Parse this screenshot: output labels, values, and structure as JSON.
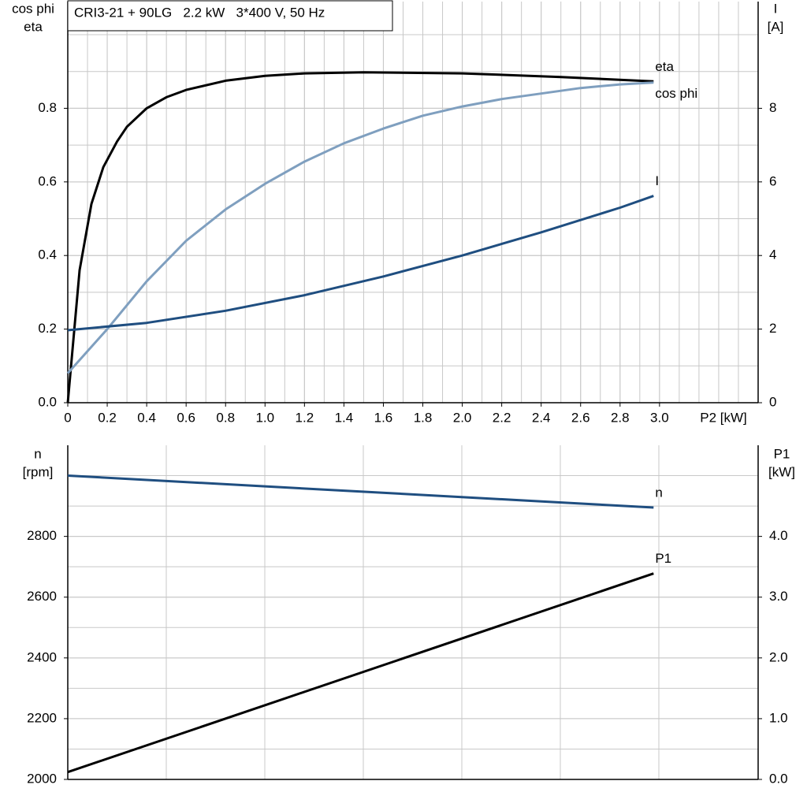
{
  "chart_data": [
    {
      "type": "line",
      "title": "CRI3-21 + 90LG   2.2 kW   3*400 V, 50 Hz",
      "ylabel": [
        "cos phi",
        "eta"
      ],
      "y2label": [
        "I",
        "[A]"
      ],
      "xlabel": "P2 [kW]",
      "xlim": [
        0,
        3.5
      ],
      "xticks": [
        0,
        0.2,
        0.4,
        0.6,
        0.8,
        {
          "value": 1.0,
          "label": "1.0"
        },
        1.2,
        1.4,
        1.6,
        1.8,
        {
          "value": 2.0,
          "label": "2.0"
        },
        2.2,
        2.4,
        2.6,
        2.8,
        {
          "value": 3.0,
          "label": "3.0"
        }
      ],
      "ylim": [
        0,
        1.09
      ],
      "yticks": [
        {
          "value": 0,
          "label": "0.0"
        },
        0.2,
        0.4,
        0.6,
        0.8
      ],
      "y2lim": [
        0,
        10.9
      ],
      "y2ticks": [
        0,
        2,
        4,
        6,
        8
      ],
      "grid": true,
      "series": [
        {
          "name": "eta",
          "color": "#000000",
          "x": [
            0,
            0.06,
            0.12,
            0.18,
            0.25,
            0.3,
            0.4,
            0.5,
            0.6,
            0.8,
            1.0,
            1.2,
            1.5,
            2.0,
            2.5,
            2.97
          ],
          "values": [
            0,
            0.36,
            0.54,
            0.64,
            0.71,
            0.75,
            0.8,
            0.83,
            0.85,
            0.875,
            0.888,
            0.895,
            0.898,
            0.895,
            0.885,
            0.873
          ]
        },
        {
          "name": "cos phi",
          "color": "#7f9fbf",
          "x": [
            0,
            0.2,
            0.4,
            0.6,
            0.8,
            1.0,
            1.2,
            1.4,
            1.6,
            1.8,
            2.0,
            2.2,
            2.4,
            2.6,
            2.8,
            2.97
          ],
          "values": [
            0.08,
            0.2,
            0.33,
            0.44,
            0.525,
            0.595,
            0.655,
            0.705,
            0.745,
            0.78,
            0.805,
            0.825,
            0.84,
            0.855,
            0.865,
            0.87
          ]
        },
        {
          "name": "I",
          "color": "#1f4e80",
          "axis": "y2",
          "x": [
            0,
            0.4,
            0.8,
            1.2,
            1.6,
            2.0,
            2.4,
            2.8,
            2.97
          ],
          "values": [
            1.97,
            2.17,
            2.5,
            2.92,
            3.43,
            4.0,
            4.63,
            5.3,
            5.62
          ]
        }
      ]
    },
    {
      "type": "line",
      "ylabel": [
        "n",
        "[rpm]"
      ],
      "y2label": [
        "P1",
        "[kW]"
      ],
      "xlim": [
        0,
        3.5
      ],
      "ylim": [
        2000,
        3100
      ],
      "yticks": [
        2000,
        2200,
        2400,
        2600,
        2800
      ],
      "y2lim": [
        0,
        5.5
      ],
      "y2ticks": [
        {
          "value": 0,
          "label": "0.0"
        },
        {
          "value": 1.0,
          "label": "1.0"
        },
        {
          "value": 2.0,
          "label": "2.0"
        },
        {
          "value": 3.0,
          "label": "3.0"
        },
        {
          "value": 4.0,
          "label": "4.0"
        }
      ],
      "grid": true,
      "series": [
        {
          "name": "n",
          "color": "#1f4e80",
          "x": [
            0,
            2.97
          ],
          "values": [
            3000,
            2895
          ]
        },
        {
          "name": "P1",
          "color": "#000000",
          "axis": "y2",
          "x": [
            0,
            2.97
          ],
          "values": [
            0.12,
            3.39
          ]
        }
      ]
    }
  ]
}
